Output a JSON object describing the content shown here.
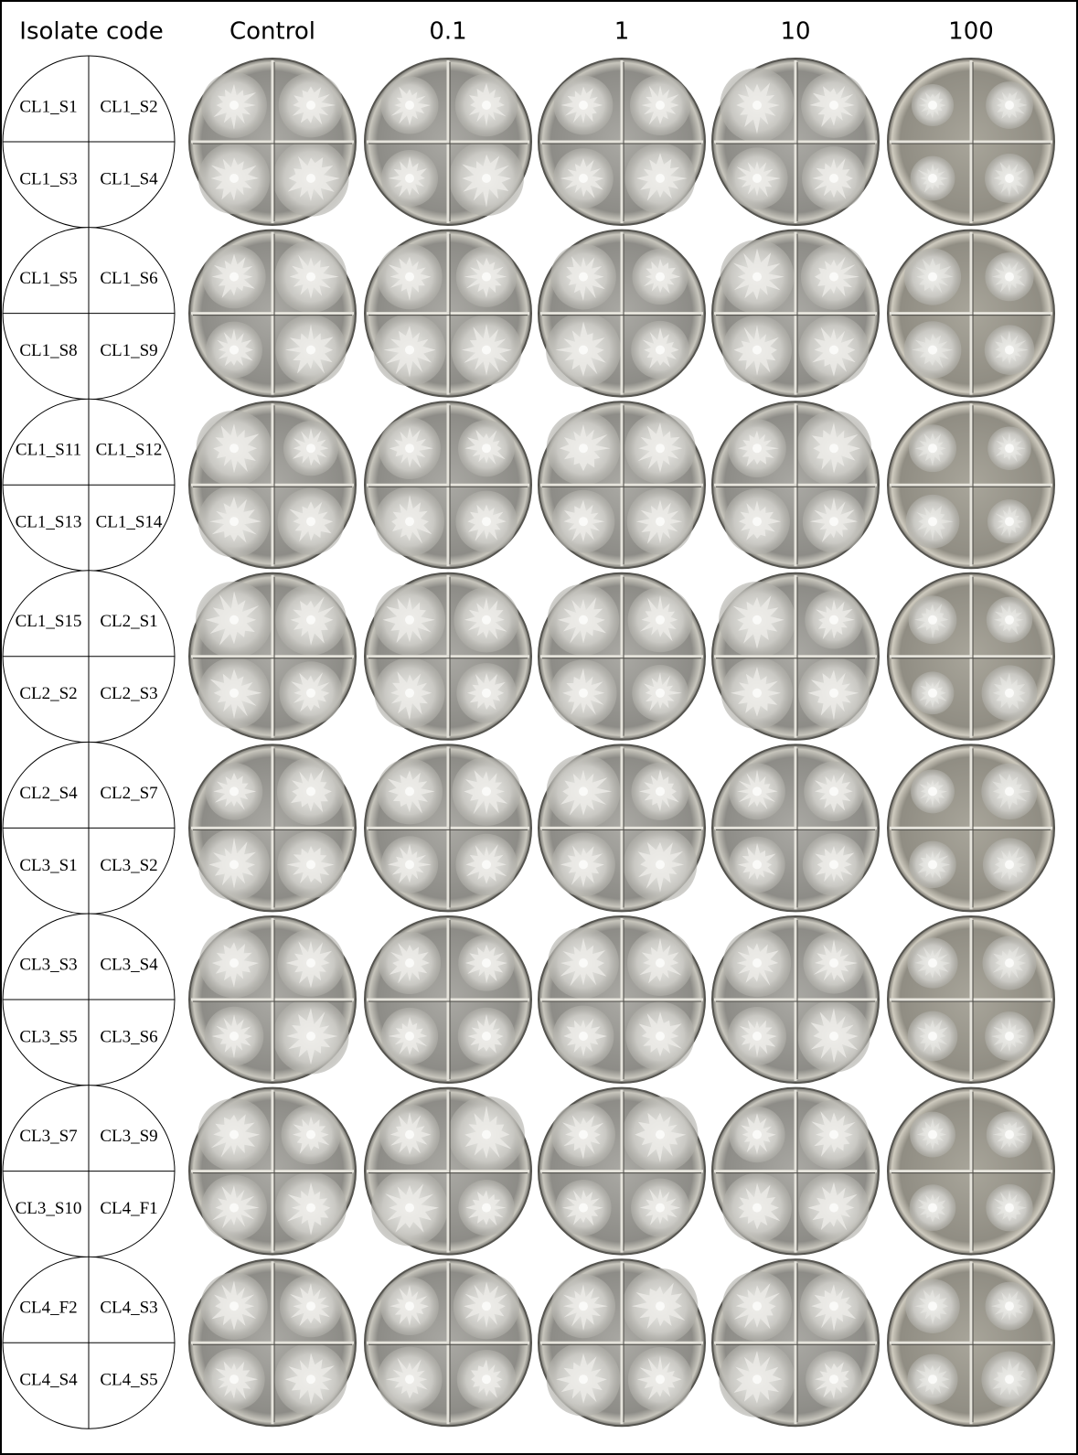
{
  "header": {
    "columns": [
      "Isolate code",
      "Control",
      "0.1",
      "1",
      "10",
      "100"
    ]
  },
  "rows": [
    {
      "isolates": [
        "CL1_S1",
        "CL1_S2",
        "CL1_S3",
        "CL1_S4"
      ]
    },
    {
      "isolates": [
        "CL1_S5",
        "CL1_S6",
        "CL1_S8",
        "CL1_S9"
      ]
    },
    {
      "isolates": [
        "CL1_S11",
        "CL1_S12",
        "CL1_S13",
        "CL1_S14"
      ]
    },
    {
      "isolates": [
        "CL1_S15",
        "CL2_S1",
        "CL2_S2",
        "CL2_S3"
      ]
    },
    {
      "isolates": [
        "CL2_S4",
        "CL2_S7",
        "CL3_S1",
        "CL3_S2"
      ]
    },
    {
      "isolates": [
        "CL3_S3",
        "CL3_S4",
        "CL3_S5",
        "CL3_S6"
      ]
    },
    {
      "isolates": [
        "CL3_S7",
        "CL3_S9",
        "CL3_S10",
        "CL4_F1"
      ]
    },
    {
      "isolates": [
        "CL4_F2",
        "CL4_S3",
        "CL4_S4",
        "CL4_S5"
      ]
    }
  ]
}
